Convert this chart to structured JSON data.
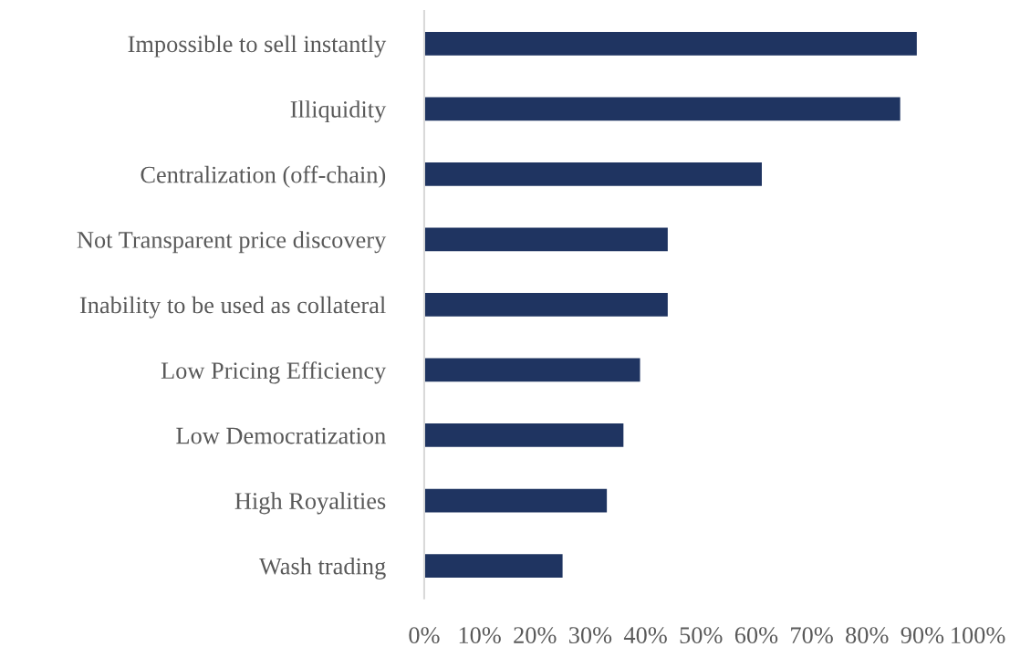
{
  "chart_data": {
    "type": "bar",
    "orientation": "horizontal",
    "categories": [
      "Impossible to sell instantly",
      "Illiquidity",
      "Centralization (off-chain)",
      "Not Transparent price discovery",
      "Inability to be used as collateral",
      "Low Pricing Efficiency",
      "Low Democratization",
      "High Royalities",
      "Wash trading"
    ],
    "values": [
      89,
      86,
      61,
      44,
      44,
      39,
      36,
      33,
      25
    ],
    "color": "#1f3461",
    "xlim": [
      0,
      100
    ],
    "xticks": [
      {
        "value": 0,
        "label": "0%"
      },
      {
        "value": 10,
        "label": "10%"
      },
      {
        "value": 20,
        "label": "20%"
      },
      {
        "value": 30,
        "label": "30%"
      },
      {
        "value": 40,
        "label": "40%"
      },
      {
        "value": 50,
        "label": "50%"
      },
      {
        "value": 60,
        "label": "60%"
      },
      {
        "value": 70,
        "label": "70%"
      },
      {
        "value": 80,
        "label": "80%"
      },
      {
        "value": 90,
        "label": "90%"
      },
      {
        "value": 100,
        "label": "100%"
      }
    ],
    "grid": false
  }
}
